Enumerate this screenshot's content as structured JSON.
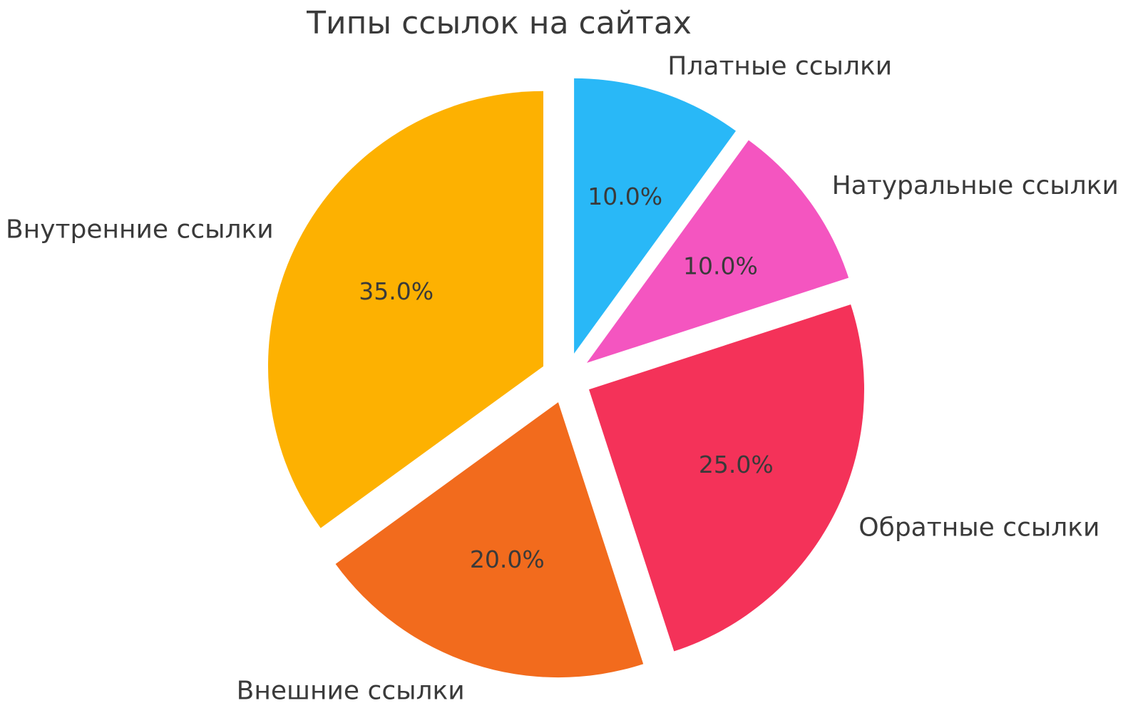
{
  "chart_data": {
    "type": "pie",
    "title": "Типы ссылок на сайтах",
    "categories": [
      "Платные ссылки",
      "Натуральные ссылки",
      "Обратные ссылки",
      "Внешние ссылки",
      "Внутренние ссылки"
    ],
    "values": [
      10,
      10,
      25,
      20,
      35
    ],
    "pct_labels": [
      "10.0%",
      "10.0%",
      "25.0%",
      "20.0%",
      "35.0%"
    ],
    "colors": [
      "#29b8f7",
      "#f455c0",
      "#f43259",
      "#f26b1d",
      "#fdb101"
    ],
    "start_angle": 90,
    "direction": "clockwise",
    "explode": 0.093,
    "labeldistance": 1.1,
    "pctdistance": 0.6,
    "legend": "none",
    "grid": "off",
    "text_color": "#3a3a3a",
    "background_color": "#ffffff"
  }
}
